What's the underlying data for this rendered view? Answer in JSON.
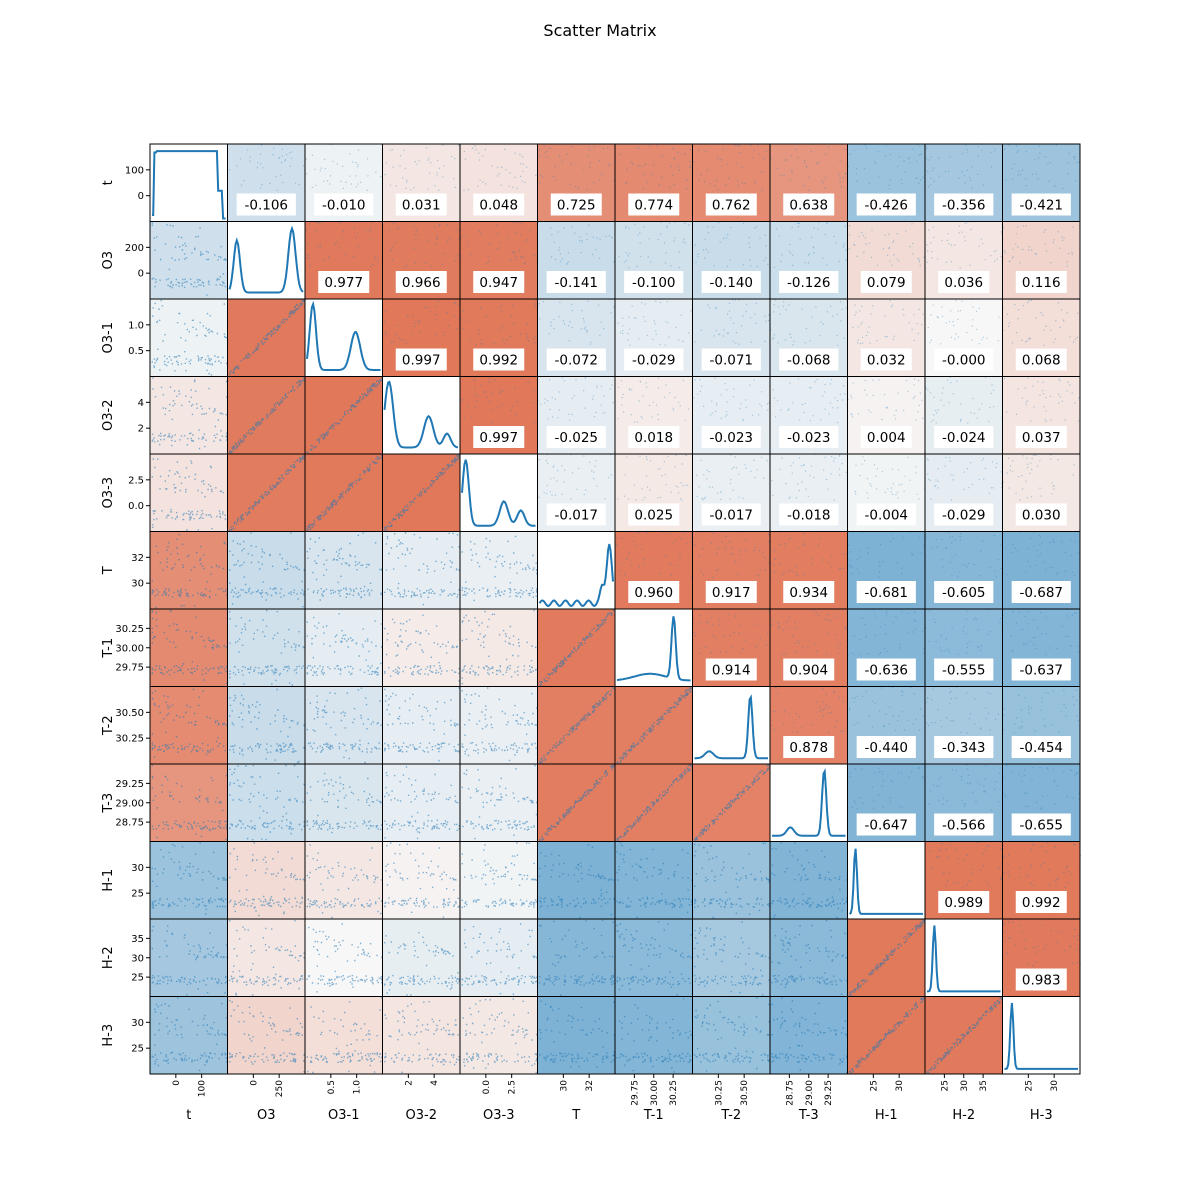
{
  "chart_data": {
    "type": "scatter",
    "title": "Scatter Matrix",
    "variables": [
      "t",
      "O3",
      "O3-1",
      "O3-2",
      "O3-3",
      "T",
      "T-1",
      "T-2",
      "T-3",
      "H-1",
      "H-2",
      "H-3"
    ],
    "x_tick_labels": [
      [
        "0",
        "100"
      ],
      [
        "0",
        "250"
      ],
      [
        "0.5",
        "1.0"
      ],
      [
        "2",
        "4"
      ],
      [
        "0.0",
        "2.5"
      ],
      [
        "30",
        "32"
      ],
      [
        "29.75",
        "30.00",
        "30.25"
      ],
      [
        "30.25",
        "30.50"
      ],
      [
        "28.75",
        "29.00",
        "29.25"
      ],
      [
        "25",
        "30"
      ],
      [
        "25",
        "30",
        "35"
      ],
      [
        "25",
        "30"
      ]
    ],
    "y_tick_labels": [
      [
        "0",
        "100"
      ],
      [
        "0",
        "200"
      ],
      [
        "0.5",
        "1.0"
      ],
      [
        "2",
        "4"
      ],
      [
        "0.0",
        "2.5"
      ],
      [
        "30",
        "32"
      ],
      [
        "29.75",
        "30.00",
        "30.25"
      ],
      [
        "30.25",
        "30.50"
      ],
      [
        "28.75",
        "29.00",
        "29.25"
      ],
      [
        "25",
        "30"
      ],
      [
        "25",
        "30",
        "35"
      ],
      [
        "25",
        "30"
      ]
    ],
    "correlations": [
      [
        "",
        "-0.106",
        "-0.010",
        "0.031",
        "0.048",
        "0.725",
        "0.774",
        "0.762",
        "0.638",
        "-0.426",
        "-0.356",
        "-0.421"
      ],
      [
        "",
        "",
        "0.977",
        "0.966",
        "0.947",
        "-0.141",
        "-0.100",
        "-0.140",
        "-0.126",
        "0.079",
        "0.036",
        "0.116"
      ],
      [
        "",
        "",
        "",
        "0.997",
        "0.992",
        "-0.072",
        "-0.029",
        "-0.071",
        "-0.068",
        "0.032",
        "-0.000",
        "0.068"
      ],
      [
        "",
        "",
        "",
        "",
        "0.997",
        "-0.025",
        "0.018",
        "-0.023",
        "-0.023",
        "0.004",
        "-0.024",
        "0.037"
      ],
      [
        "",
        "",
        "",
        "",
        "",
        "-0.017",
        "0.025",
        "-0.017",
        "-0.018",
        "-0.004",
        "-0.029",
        "0.030"
      ],
      [
        "",
        "",
        "",
        "",
        "",
        "",
        "0.960",
        "0.917",
        "0.934",
        "-0.681",
        "-0.605",
        "-0.687"
      ],
      [
        "",
        "",
        "",
        "",
        "",
        "",
        "",
        "0.914",
        "0.904",
        "-0.636",
        "-0.555",
        "-0.637"
      ],
      [
        "",
        "",
        "",
        "",
        "",
        "",
        "",
        "",
        "0.878",
        "-0.440",
        "-0.343",
        "-0.454"
      ],
      [
        "",
        "",
        "",
        "",
        "",
        "",
        "",
        "",
        "",
        "-0.647",
        "-0.566",
        "-0.655"
      ],
      [
        "",
        "",
        "",
        "",
        "",
        "",
        "",
        "",
        "",
        "",
        "0.989",
        "0.992"
      ],
      [
        "",
        "",
        "",
        "",
        "",
        "",
        "",
        "",
        "",
        "",
        "",
        "0.983"
      ],
      [
        "",
        "",
        "",
        "",
        "",
        "",
        "",
        "",
        "",
        "",
        "",
        ""
      ]
    ],
    "diagonal": "kde",
    "lower_triangle": "scatter",
    "upper_triangle": "correlation annotation",
    "cell_background": "colored by correlation (red positive, blue negative)",
    "colors": {
      "series": "#1f77b4",
      "positive": "#e37b5f",
      "negative": "#5ea4cc"
    }
  }
}
